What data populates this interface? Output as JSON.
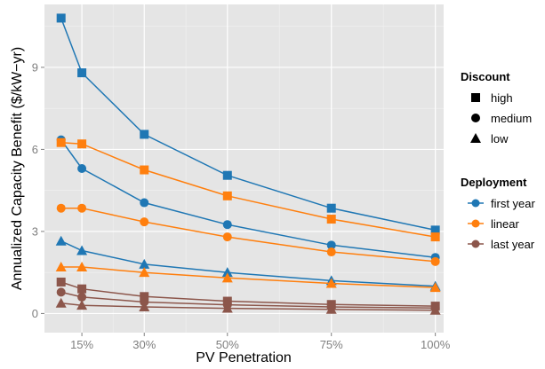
{
  "chart_data": {
    "type": "line",
    "xlabel": "PV Penetration",
    "ylabel": "Annualized Capacity Benefit ($/kW−yr)",
    "xlim": [
      6,
      102
    ],
    "ylim": [
      -0.7,
      11.3
    ],
    "x_ticks": [
      15,
      30,
      50,
      75,
      100
    ],
    "x_tick_labels": [
      "15%",
      "30%",
      "50%",
      "75%",
      "100%"
    ],
    "y_ticks": [
      0,
      3,
      6,
      9
    ],
    "y_tick_labels": [
      "0",
      "3",
      "6",
      "9"
    ],
    "grid": true,
    "background": "#e5e5e5",
    "x": [
      10,
      15,
      30,
      50,
      75,
      100
    ],
    "series": [
      {
        "deployment": "first year",
        "discount": "high",
        "color": "#1f77b4",
        "values": [
          10.8,
          8.8,
          6.55,
          5.05,
          3.85,
          3.05
        ]
      },
      {
        "deployment": "first year",
        "discount": "medium",
        "color": "#1f77b4",
        "values": [
          6.35,
          5.3,
          4.05,
          3.25,
          2.5,
          2.05
        ]
      },
      {
        "deployment": "first year",
        "discount": "low",
        "color": "#1f77b4",
        "values": [
          2.65,
          2.3,
          1.8,
          1.5,
          1.2,
          1.0
        ]
      },
      {
        "deployment": "linear",
        "discount": "high",
        "color": "#ff7f0e",
        "values": [
          6.25,
          6.2,
          5.25,
          4.3,
          3.45,
          2.8
        ]
      },
      {
        "deployment": "linear",
        "discount": "medium",
        "color": "#ff7f0e",
        "values": [
          3.85,
          3.85,
          3.35,
          2.8,
          2.25,
          1.9
        ]
      },
      {
        "deployment": "linear",
        "discount": "low",
        "color": "#ff7f0e",
        "values": [
          1.7,
          1.7,
          1.5,
          1.3,
          1.1,
          0.95
        ]
      },
      {
        "deployment": "last year",
        "discount": "high",
        "color": "#8c564b",
        "values": [
          1.15,
          0.9,
          0.62,
          0.45,
          0.33,
          0.27
        ]
      },
      {
        "deployment": "last year",
        "discount": "medium",
        "color": "#8c564b",
        "values": [
          0.78,
          0.6,
          0.42,
          0.32,
          0.24,
          0.2
        ]
      },
      {
        "deployment": "last year",
        "discount": "low",
        "color": "#8c564b",
        "values": [
          0.38,
          0.3,
          0.24,
          0.19,
          0.15,
          0.12
        ]
      }
    ],
    "legend": {
      "placement": "right",
      "discount": {
        "title": "Discount",
        "items": [
          {
            "label": "high",
            "shape": "square"
          },
          {
            "label": "medium",
            "shape": "circle"
          },
          {
            "label": "low",
            "shape": "triangle"
          }
        ]
      },
      "deployment": {
        "title": "Deployment",
        "items": [
          {
            "label": "first year",
            "color": "#1f77b4"
          },
          {
            "label": "linear",
            "color": "#ff7f0e"
          },
          {
            "label": "last year",
            "color": "#8c564b"
          }
        ]
      }
    }
  }
}
